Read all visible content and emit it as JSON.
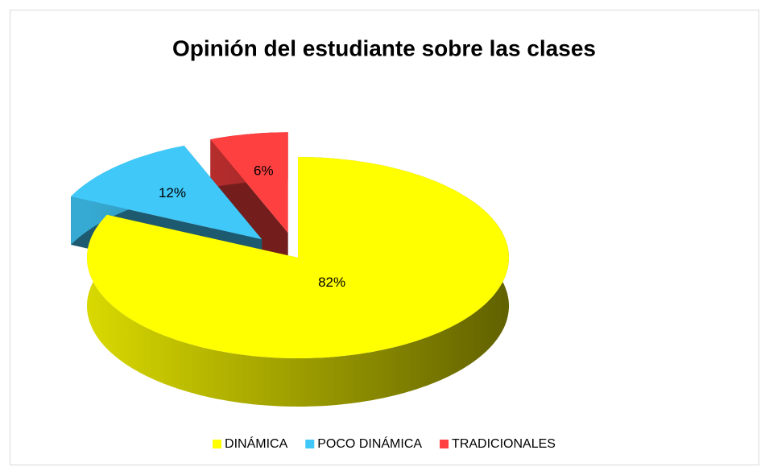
{
  "chart_data": {
    "type": "pie3d",
    "title": "Opinión del estudiante sobre las clases",
    "categories": [
      "DINÁMICA",
      "POCO DINÁMICA",
      "TRADICIONALES"
    ],
    "values": [
      82,
      12,
      6
    ],
    "value_labels": [
      "82%",
      "12%",
      "6%"
    ],
    "colors": [
      "#ffff00",
      "#40c8f8",
      "#ff4040"
    ],
    "legend": "bottom"
  }
}
